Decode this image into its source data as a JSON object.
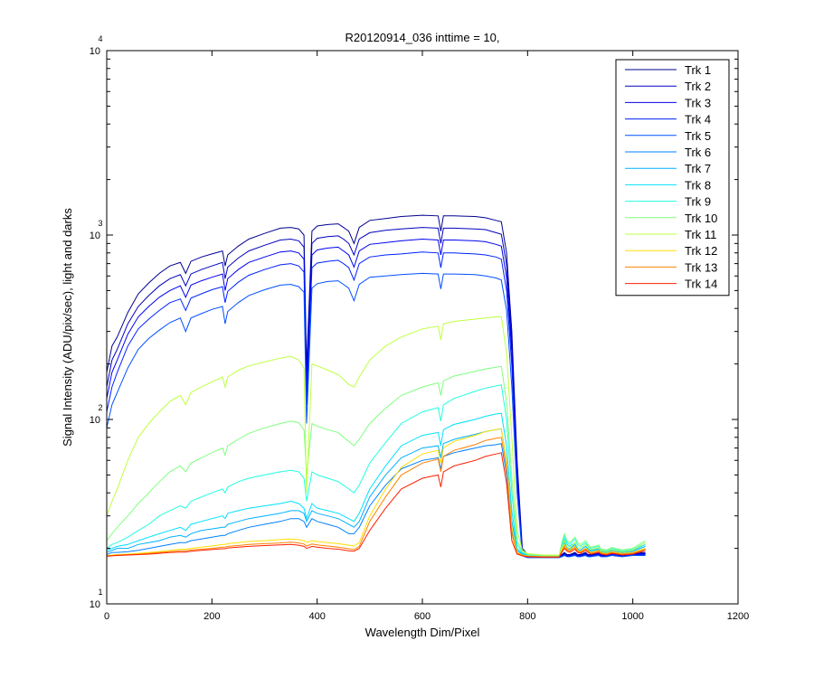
{
  "chart_data": {
    "type": "line",
    "title": "R20120914_036 inttime = 10,",
    "xlabel": "Wavelength Dim/Pixel",
    "ylabel": "Signal Intensity (ADU/pix/sec), light and darks",
    "xlim": [
      0,
      1200
    ],
    "ylim": [
      10,
      10000
    ],
    "yscale": "log",
    "grid": false,
    "legend_position": "top-right",
    "x_ticks": [
      "0",
      "200",
      "400",
      "600",
      "800",
      "1000",
      "1200"
    ],
    "y_ticks": [
      {
        "value": 10,
        "base": "10",
        "exp": "1"
      },
      {
        "value": 100,
        "base": "10",
        "exp": "2"
      },
      {
        "value": 1000,
        "base": "10",
        "exp": "3"
      },
      {
        "value": 10000,
        "base": "10",
        "exp": "4"
      }
    ],
    "x_points": [
      0,
      10,
      20,
      40,
      60,
      80,
      100,
      120,
      140,
      150,
      160,
      180,
      200,
      220,
      225,
      230,
      250,
      270,
      300,
      330,
      350,
      365,
      375,
      380,
      390,
      400,
      420,
      440,
      450,
      460,
      470,
      480,
      500,
      530,
      560,
      600,
      630,
      635,
      640,
      660,
      700,
      720,
      740,
      750,
      760,
      770,
      780,
      790,
      800,
      830,
      860,
      865,
      870,
      875,
      880,
      890,
      895,
      900,
      910,
      915,
      920,
      935,
      940,
      950,
      960,
      980,
      1000,
      1024
    ],
    "series": [
      {
        "name": "Trk 1",
        "color": "#00008F",
        "values": [
          180,
          250,
          280,
          380,
          480,
          550,
          620,
          680,
          710,
          620,
          720,
          760,
          790,
          820,
          680,
          780,
          870,
          950,
          1020,
          1090,
          1100,
          1080,
          1000,
          190,
          1050,
          1120,
          1140,
          1150,
          1100,
          1050,
          900,
          1100,
          1200,
          1230,
          1260,
          1280,
          1270,
          1050,
          1270,
          1270,
          1260,
          1240,
          1200,
          1180,
          800,
          300,
          60,
          20,
          18.5,
          18,
          18,
          18.5,
          19,
          18.5,
          18.5,
          19,
          18.5,
          18.5,
          19,
          18.5,
          18.5,
          19,
          18.5,
          18.5,
          19,
          18.5,
          19,
          19
        ]
      },
      {
        "name": "Trk 2",
        "color": "#0000BF",
        "values": [
          150,
          210,
          240,
          330,
          410,
          470,
          530,
          580,
          610,
          530,
          615,
          650,
          680,
          710,
          580,
          670,
          750,
          820,
          880,
          940,
          950,
          930,
          860,
          160,
          900,
          960,
          980,
          990,
          950,
          900,
          780,
          950,
          1030,
          1060,
          1080,
          1100,
          1090,
          900,
          1090,
          1090,
          1080,
          1070,
          1030,
          1010,
          690,
          260,
          55,
          19,
          18.3,
          18,
          18,
          18.3,
          18.8,
          18.3,
          18.3,
          18.8,
          18.3,
          18.3,
          18.8,
          18.3,
          18.3,
          18.8,
          18.3,
          18.3,
          18.8,
          18.3,
          18.8,
          18.8
        ]
      },
      {
        "name": "Trk 3",
        "color": "#0000EF",
        "values": [
          130,
          180,
          210,
          290,
          360,
          410,
          460,
          500,
          530,
          460,
          535,
          565,
          590,
          615,
          500,
          580,
          650,
          710,
          760,
          810,
          820,
          800,
          740,
          140,
          780,
          830,
          850,
          860,
          820,
          780,
          670,
          820,
          890,
          910,
          930,
          950,
          940,
          780,
          940,
          940,
          930,
          920,
          890,
          870,
          590,
          230,
          50,
          18.8,
          18.2,
          18,
          18,
          18.2,
          18.6,
          18.2,
          18.2,
          18.6,
          18.2,
          18.2,
          18.6,
          18.2,
          18.2,
          18.6,
          18.2,
          18.2,
          18.6,
          18.2,
          18.6,
          18.6
        ]
      },
      {
        "name": "Trk 4",
        "color": "#0020FF",
        "values": [
          110,
          150,
          180,
          250,
          310,
          350,
          390,
          430,
          450,
          390,
          455,
          480,
          505,
          525,
          430,
          495,
          555,
          605,
          650,
          690,
          700,
          680,
          630,
          120,
          665,
          705,
          720,
          730,
          700,
          665,
          570,
          700,
          760,
          780,
          790,
          810,
          800,
          665,
          800,
          800,
          790,
          780,
          760,
          740,
          500,
          195,
          45,
          18.5,
          18,
          18,
          18,
          18.1,
          18.5,
          18.1,
          18.1,
          18.5,
          18.1,
          18.1,
          18.5,
          18.1,
          18.1,
          18.5,
          18.1,
          18.1,
          18.5,
          18.1,
          18.5,
          18.5
        ]
      },
      {
        "name": "Trk 5",
        "color": "#0050FF",
        "values": [
          90,
          120,
          140,
          190,
          240,
          275,
          305,
          335,
          355,
          300,
          355,
          375,
          395,
          410,
          330,
          385,
          430,
          470,
          505,
          535,
          540,
          525,
          490,
          95,
          515,
          545,
          560,
          565,
          540,
          515,
          440,
          540,
          590,
          600,
          610,
          620,
          615,
          510,
          615,
          615,
          610,
          600,
          585,
          570,
          390,
          150,
          40,
          18.2,
          17.8,
          17.8,
          17.8,
          18,
          18.3,
          18,
          18,
          18.3,
          18,
          18,
          18.3,
          18,
          18,
          18.3,
          18,
          18,
          18.3,
          18,
          18.3,
          18.3
        ]
      },
      {
        "name": "Trk 6",
        "color": "#0080FF",
        "values": [
          18.5,
          19,
          19,
          19.2,
          19.5,
          20,
          20.5,
          21,
          21.5,
          21.5,
          22,
          22.5,
          23,
          23.5,
          23.5,
          24,
          25,
          26,
          27,
          28,
          29,
          29,
          28,
          26,
          29,
          28,
          27,
          26,
          25,
          24,
          24,
          26,
          34,
          44,
          54,
          60,
          62,
          54,
          63,
          66,
          70,
          72,
          73,
          74,
          50,
          25,
          19,
          18.5,
          18.3,
          18.1,
          18.1,
          19.5,
          21,
          19.8,
          19.5,
          20.5,
          19.5,
          19.2,
          20,
          19.5,
          19,
          19.5,
          19,
          18.8,
          19.2,
          18.8,
          19,
          20
        ]
      },
      {
        "name": "Trk 7",
        "color": "#00B0FF",
        "values": [
          19,
          19.5,
          20,
          20,
          21,
          21.5,
          22,
          23,
          23.5,
          23,
          24,
          25,
          25.5,
          26,
          26,
          27,
          28,
          29,
          30,
          31,
          32,
          32,
          31,
          28,
          32,
          31,
          30,
          29,
          28,
          27,
          26,
          28,
          38,
          50,
          62,
          70,
          72,
          62,
          74,
          78,
          83,
          86,
          88,
          89,
          60,
          28,
          19.5,
          18.6,
          18.3,
          18.1,
          18.1,
          19.8,
          21.5,
          20,
          19.8,
          21,
          19.8,
          19.5,
          20.5,
          19.8,
          19.3,
          19.8,
          19.2,
          19,
          19.5,
          19,
          19.3,
          20.5
        ]
      },
      {
        "name": "Trk 8",
        "color": "#00E0FF",
        "values": [
          19.5,
          20,
          20.5,
          21,
          22,
          23,
          24,
          25,
          26,
          25,
          27,
          28,
          29,
          30,
          29,
          31,
          32,
          33,
          34,
          35,
          36,
          35,
          33,
          29,
          35,
          33,
          32,
          31,
          30,
          29,
          28,
          31,
          42,
          56,
          72,
          82,
          85,
          72,
          88,
          94,
          100,
          104,
          107,
          108,
          72,
          32,
          20,
          18.8,
          18.4,
          18.1,
          18.1,
          20.5,
          22.5,
          21,
          20.5,
          21.5,
          20.3,
          20,
          21,
          20.2,
          19.6,
          20,
          19.4,
          19.2,
          19.7,
          19.2,
          19.5,
          21
        ]
      },
      {
        "name": "Trk 9",
        "color": "#20FFDF",
        "values": [
          20,
          21,
          21.5,
          23,
          25,
          27,
          30,
          32,
          34,
          33,
          36,
          38,
          40,
          42,
          40,
          43,
          46,
          48,
          50,
          52,
          53,
          52,
          48,
          36,
          52,
          50,
          48,
          46,
          44,
          42,
          40,
          44,
          58,
          75,
          95,
          110,
          116,
          98,
          120,
          130,
          142,
          148,
          152,
          154,
          100,
          40,
          21,
          19,
          18.5,
          18.2,
          18.2,
          21,
          23.5,
          21.5,
          21,
          22.5,
          21,
          20.5,
          21.5,
          20.5,
          20,
          20.5,
          19.6,
          19.4,
          20,
          19.4,
          19.7,
          21.5
        ]
      },
      {
        "name": "Trk 10",
        "color": "#80FF7F",
        "values": [
          22,
          24,
          26,
          30,
          35,
          40,
          46,
          52,
          56,
          52,
          58,
          62,
          66,
          70,
          64,
          72,
          78,
          84,
          90,
          95,
          98,
          96,
          88,
          50,
          95,
          92,
          88,
          85,
          80,
          76,
          72,
          78,
          95,
          115,
          135,
          150,
          158,
          135,
          162,
          172,
          182,
          188,
          192,
          194,
          125,
          48,
          22,
          19.2,
          18.6,
          18.3,
          18.3,
          21.5,
          24,
          22,
          21.5,
          23,
          21.5,
          21,
          22,
          21,
          20.3,
          20.8,
          19.8,
          19.6,
          20.2,
          19.6,
          20,
          22
        ]
      },
      {
        "name": "Trk 11",
        "color": "#BFFF40",
        "values": [
          30,
          36,
          42,
          60,
          80,
          95,
          110,
          125,
          135,
          120,
          140,
          150,
          160,
          170,
          150,
          170,
          185,
          195,
          205,
          215,
          220,
          210,
          190,
          40,
          200,
          195,
          185,
          175,
          165,
          155,
          150,
          170,
          210,
          250,
          280,
          310,
          320,
          270,
          330,
          340,
          350,
          355,
          360,
          360,
          230,
          80,
          25,
          19.5,
          18.7,
          18.4,
          18.4,
          20,
          22,
          20.5,
          20,
          21.5,
          20.3,
          20,
          21,
          20.2,
          19.7,
          20.1,
          19.4,
          19.2,
          19.7,
          19.2,
          19.5,
          21.5
        ]
      },
      {
        "name": "Trk 12",
        "color": "#FFDF00",
        "values": [
          18.3,
          18.4,
          18.5,
          18.6,
          18.8,
          19,
          19.2,
          19.5,
          19.8,
          19.8,
          20,
          20.3,
          20.6,
          21,
          21,
          21.2,
          21.5,
          21.8,
          22,
          22.3,
          22.5,
          22.3,
          22,
          21.5,
          22,
          21.8,
          21.5,
          21.2,
          21,
          20.8,
          20.6,
          21.5,
          30,
          42,
          55,
          65,
          68,
          58,
          70,
          76,
          82,
          86,
          88,
          89,
          60,
          26,
          19,
          18.4,
          18.2,
          18,
          18,
          19.5,
          21,
          19.8,
          19.5,
          20.5,
          19.5,
          19.2,
          20,
          19.5,
          19,
          19.5,
          19,
          18.8,
          19.2,
          18.8,
          19,
          20
        ]
      },
      {
        "name": "Trk 13",
        "color": "#FF8000",
        "values": [
          18.2,
          18.3,
          18.4,
          18.5,
          18.6,
          18.8,
          19,
          19.2,
          19.4,
          19.4,
          19.6,
          19.8,
          20,
          20.3,
          20.3,
          20.5,
          20.7,
          21,
          21.2,
          21.4,
          21.6,
          21.4,
          21.1,
          20.6,
          21.1,
          20.9,
          20.6,
          20.3,
          20.1,
          19.9,
          19.7,
          20.5,
          28,
          38,
          50,
          58,
          61,
          52,
          63,
          68,
          73,
          77,
          79,
          80,
          55,
          24,
          18.8,
          18.3,
          18.1,
          18,
          18,
          19.3,
          20.5,
          19.6,
          19.3,
          20.2,
          19.3,
          19,
          19.8,
          19.3,
          18.8,
          19.3,
          18.8,
          18.6,
          19,
          18.6,
          18.8,
          19.8
        ]
      },
      {
        "name": "Trk 14",
        "color": "#FF2000",
        "values": [
          18.1,
          18.2,
          18.3,
          18.4,
          18.5,
          18.6,
          18.8,
          19,
          19.1,
          19.1,
          19.3,
          19.5,
          19.7,
          19.9,
          19.9,
          20.1,
          20.3,
          20.5,
          20.7,
          20.9,
          21,
          20.8,
          20.5,
          20,
          20.5,
          20.3,
          20,
          19.8,
          19.6,
          19.4,
          19.3,
          20,
          25,
          33,
          42,
          48,
          50,
          43,
          52,
          56,
          60,
          63,
          65,
          66,
          45,
          22,
          18.6,
          18.2,
          18,
          17.9,
          17.9,
          19,
          20,
          19.3,
          19,
          19.8,
          19,
          18.8,
          19.5,
          19,
          18.6,
          19,
          18.6,
          18.4,
          18.8,
          18.4,
          18.6,
          19.5
        ]
      }
    ]
  }
}
